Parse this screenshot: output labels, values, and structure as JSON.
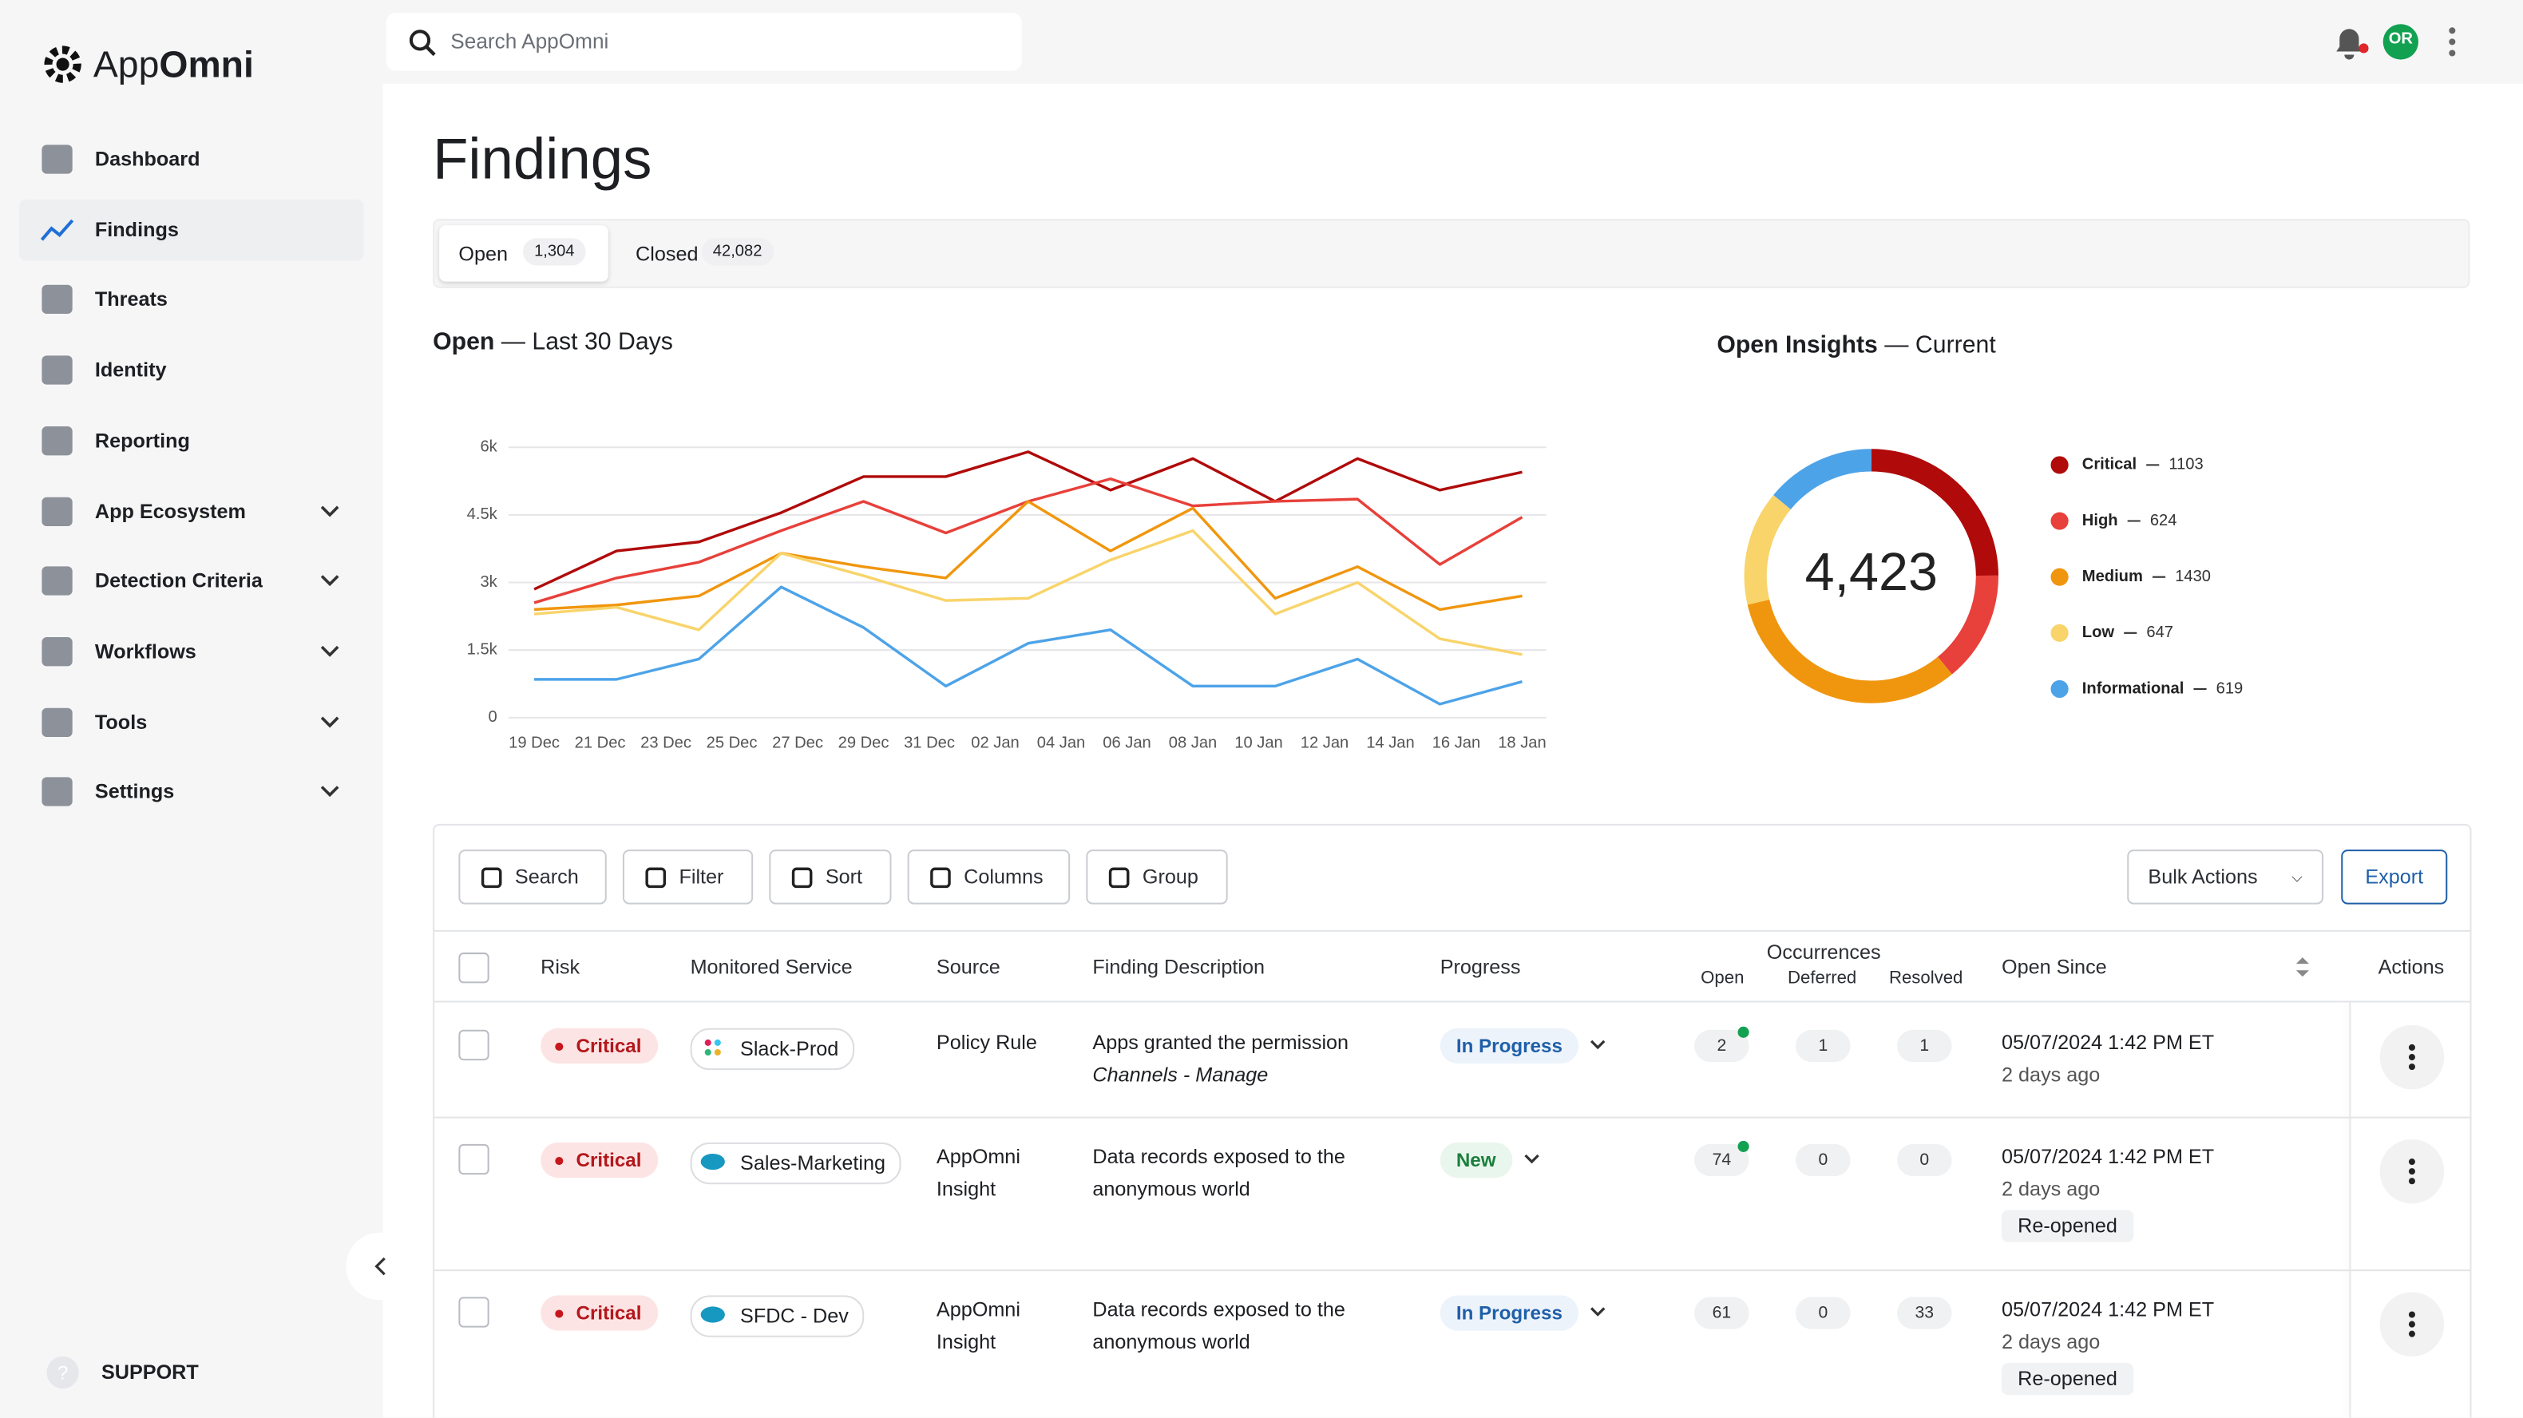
{
  "brand": [
    "App",
    "Omni"
  ],
  "search_placeholder": "Search AppOmni",
  "avatar": "OR",
  "nav": [
    {
      "label": "Dashboard",
      "expandable": false,
      "active": false
    },
    {
      "label": "Findings",
      "expandable": false,
      "active": true
    },
    {
      "label": "Threats",
      "expandable": false,
      "active": false
    },
    {
      "label": "Identity",
      "expandable": false,
      "active": false
    },
    {
      "label": "Reporting",
      "expandable": false,
      "active": false
    },
    {
      "label": "App Ecosystem",
      "expandable": true,
      "active": false
    },
    {
      "label": "Detection Criteria",
      "expandable": true,
      "active": false
    },
    {
      "label": "Workflows",
      "expandable": true,
      "active": false
    },
    {
      "label": "Tools",
      "expandable": true,
      "active": false
    },
    {
      "label": "Settings",
      "expandable": true,
      "active": false
    }
  ],
  "support": "SUPPORT",
  "page_title": "Findings",
  "tabs": [
    {
      "label": "Open",
      "count": "1,304"
    },
    {
      "label": "Closed",
      "count": "42,082"
    }
  ],
  "chart_data": [
    {
      "type": "line",
      "title": "Open",
      "subtitle": "— Last 30 Days",
      "x": [
        0,
        2.5,
        5,
        7.5,
        10,
        12.5,
        15,
        17.5,
        20,
        22.5,
        25,
        27.5,
        30
      ],
      "xlim": [
        0,
        30
      ],
      "xticks": [
        {
          "value": 0,
          "label": "19 Dec"
        },
        {
          "value": 2,
          "label": "21 Dec"
        },
        {
          "value": 4,
          "label": "23 Dec"
        },
        {
          "value": 6,
          "label": "25 Dec"
        },
        {
          "value": 8,
          "label": "27 Dec"
        },
        {
          "value": 10,
          "label": "29 Dec"
        },
        {
          "value": 12,
          "label": "31 Dec"
        },
        {
          "value": 14,
          "label": "02 Jan"
        },
        {
          "value": 16,
          "label": "04 Jan"
        },
        {
          "value": 18,
          "label": "06 Jan"
        },
        {
          "value": 20,
          "label": "08 Jan"
        },
        {
          "value": 22,
          "label": "10 Jan"
        },
        {
          "value": 24,
          "label": "12 Jan"
        },
        {
          "value": 26,
          "label": "14 Jan"
        },
        {
          "value": 28,
          "label": "16 Jan"
        },
        {
          "value": 30,
          "label": "18 Jan"
        }
      ],
      "ylim": [
        0,
        6000
      ],
      "yticks": [
        0,
        {
          "value": 1500,
          "label": "1.5k"
        },
        {
          "value": 3000,
          "label": "3k"
        },
        {
          "value": 4500,
          "label": "4.5k"
        },
        {
          "value": 6000,
          "label": "6k"
        }
      ],
      "grid": true,
      "series": [
        {
          "color": "#b00a0a",
          "values": [
            2850,
            3700,
            3900,
            4550,
            5350,
            5350,
            5900,
            5050,
            5750,
            4800,
            5750,
            5050,
            5450
          ]
        },
        {
          "color": "#e8403a",
          "values": [
            2550,
            3100,
            3450,
            4150,
            4800,
            4100,
            4800,
            5300,
            4700,
            4800,
            4850,
            3400,
            4450
          ]
        },
        {
          "color": "#f0960e",
          "values": [
            2400,
            2500,
            2700,
            3650,
            3350,
            3100,
            4800,
            3700,
            4650,
            2650,
            3350,
            2400,
            2700
          ]
        },
        {
          "color": "#f8d46a",
          "values": [
            2300,
            2450,
            1950,
            3650,
            3150,
            2600,
            2650,
            3500,
            4150,
            2300,
            3000,
            1750,
            1400
          ]
        },
        {
          "color": "#4da3e8",
          "values": [
            850,
            850,
            1300,
            2900,
            2000,
            700,
            1650,
            1950,
            700,
            700,
            1300,
            300,
            800
          ]
        }
      ]
    },
    {
      "type": "donut",
      "title": "Open Insights",
      "subtitle": "— Current",
      "center_label": "4,423",
      "categories": [
        "Critical",
        "High",
        "Medium",
        "Low",
        "Informational"
      ],
      "values": [
        1103,
        624,
        1430,
        647,
        619
      ],
      "colors": [
        "#b00a0a",
        "#e8403a",
        "#f0960e",
        "#f8d46a",
        "#4da3e8"
      ]
    }
  ],
  "toolbar": [
    "Search",
    "Filter",
    "Sort",
    "Columns",
    "Group"
  ],
  "bulk_actions": "Bulk Actions",
  "export": "Export",
  "columns": {
    "risk": "Risk",
    "service": "Monitored Service",
    "source": "Source",
    "description": "Finding Description",
    "progress": "Progress",
    "occurrences": "Occurrences",
    "open": "Open",
    "deferred": "Deferred",
    "resolved": "Resolved",
    "open_since": "Open Since",
    "actions": "Actions"
  },
  "rows": [
    {
      "risk": "Critical",
      "service": "Slack-Prod",
      "icon": "slack",
      "source": [
        "Policy Rule"
      ],
      "description": [
        "Apps granted the permission",
        "Channels - Manage"
      ],
      "progress": "In Progress",
      "progress_color": "#1f5fa8",
      "progress_bg": "#edf3fb",
      "open": 2,
      "new_activity": true,
      "deferred": 1,
      "resolved": 1,
      "date": "05/07/2024 1:42 PM ET",
      "ago": "2 days ago",
      "tag": null
    },
    {
      "risk": "Critical",
      "service": "Sales-Marketing",
      "icon": "salesforce",
      "source": [
        "AppOmni",
        "Insight"
      ],
      "description": [
        "Data records exposed to the",
        "anonymous world"
      ],
      "progress": "New",
      "progress_color": "#1a7f3c",
      "progress_bg": "#e9f6ed",
      "open": 74,
      "new_activity": true,
      "deferred": 0,
      "resolved": 0,
      "date": "05/07/2024 1:42 PM ET",
      "ago": "2 days ago",
      "tag": "Re-opened"
    },
    {
      "risk": "Critical",
      "service": "SFDC - Dev",
      "icon": "salesforce",
      "source": [
        "AppOmni",
        "Insight"
      ],
      "description": [
        "Data records exposed to the",
        "anonymous world"
      ],
      "progress": "In Progress",
      "progress_color": "#1f5fa8",
      "progress_bg": "#edf3fb",
      "open": 61,
      "new_activity": false,
      "deferred": 0,
      "resolved": 33,
      "date": "05/07/2024 1:42 PM ET",
      "ago": "2 days ago",
      "tag": "Re-opened"
    }
  ]
}
